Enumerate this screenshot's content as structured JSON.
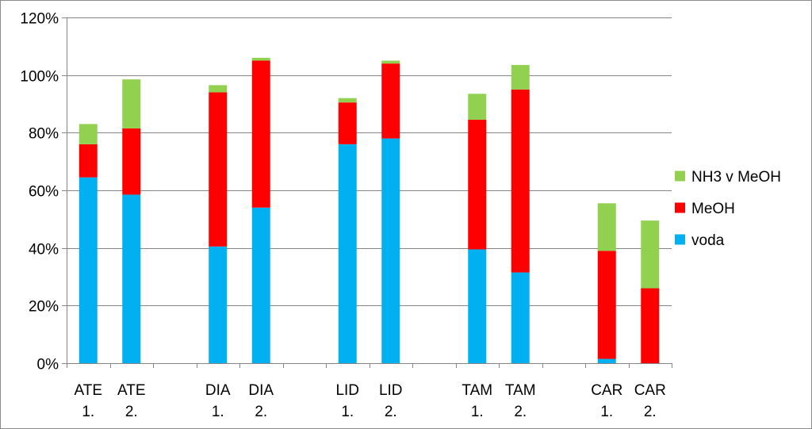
{
  "chart_data": {
    "type": "bar",
    "stacked": true,
    "categories": [
      [
        "ATE",
        "1."
      ],
      [
        "ATE",
        "2."
      ],
      [
        "",
        ""
      ],
      [
        "DIA",
        "1."
      ],
      [
        "DIA",
        "2."
      ],
      [
        "",
        ""
      ],
      [
        "LID",
        "1."
      ],
      [
        "LID",
        "2."
      ],
      [
        "",
        ""
      ],
      [
        "TAM",
        "1."
      ],
      [
        "TAM",
        "2."
      ],
      [
        "",
        ""
      ],
      [
        "CAR",
        "1."
      ],
      [
        "CAR",
        "2."
      ]
    ],
    "series": [
      {
        "name": "voda",
        "color": "#00b0f0",
        "values": [
          64.5,
          58.5,
          null,
          40.5,
          54,
          null,
          76,
          78,
          null,
          39.5,
          31.5,
          null,
          1.5,
          0
        ]
      },
      {
        "name": "MeOH",
        "color": "#ff0000",
        "values": [
          11.5,
          23,
          null,
          53.5,
          51,
          null,
          14.5,
          26,
          null,
          45,
          63.5,
          null,
          37.5,
          26
        ]
      },
      {
        "name": "NH3 v MeOH",
        "color": "#92d050",
        "values": [
          7,
          17,
          null,
          2.5,
          1,
          null,
          1.5,
          1,
          null,
          9,
          8.5,
          null,
          16.5,
          23.5
        ]
      }
    ],
    "ylim": [
      0,
      120
    ],
    "yticks": [
      "0%",
      "20%",
      "40%",
      "60%",
      "80%",
      "100%",
      "120%"
    ],
    "ytick_values": [
      0,
      20,
      40,
      60,
      80,
      100,
      120
    ],
    "grid": true,
    "legend_position": "right",
    "legend_order": [
      "NH3 v MeOH",
      "MeOH",
      "voda"
    ],
    "axis_color": "#868686",
    "grid_color": "#868686"
  }
}
